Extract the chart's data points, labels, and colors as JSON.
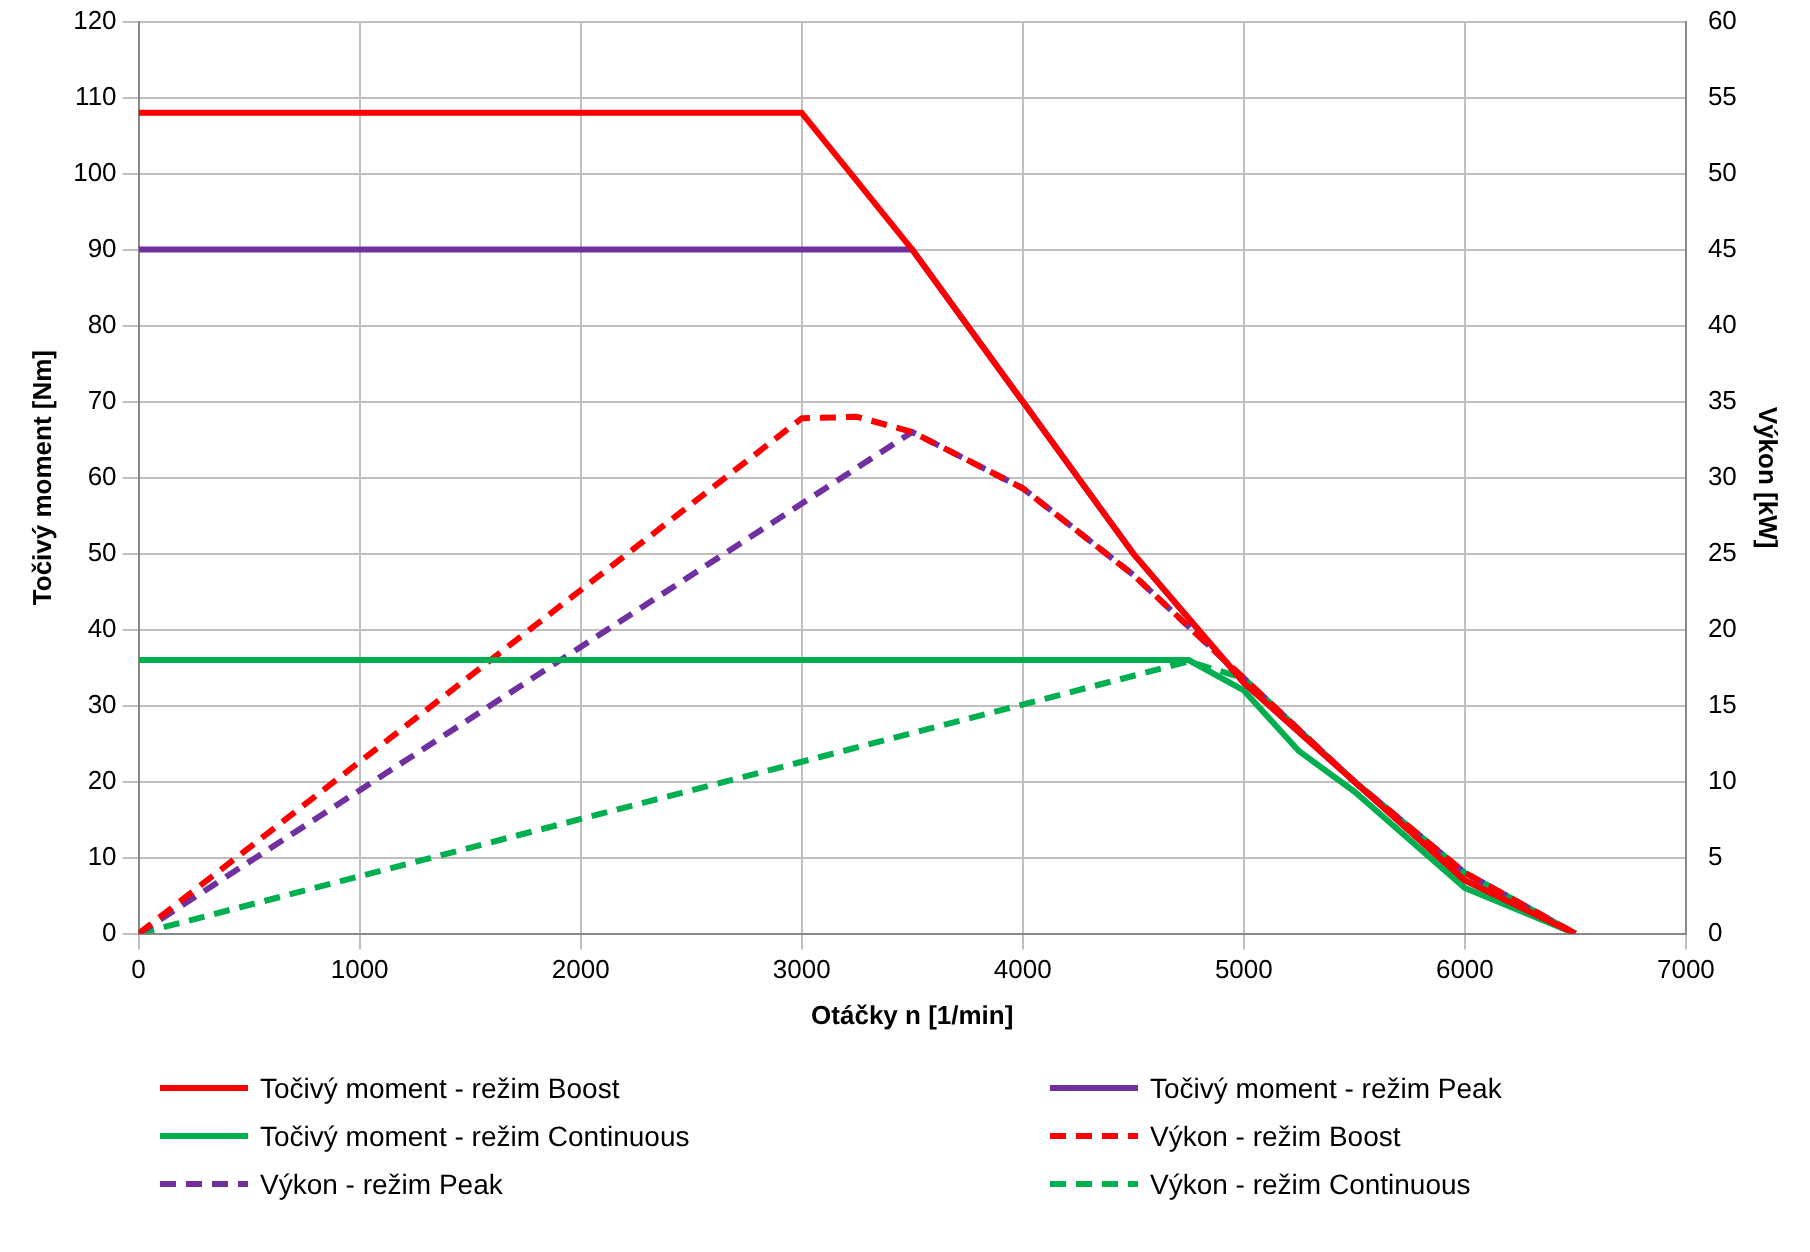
{
  "chart_data": {
    "type": "line",
    "xlabel": "Otáčky n [1/min]",
    "ylabel": "Točivý moment [Nm]",
    "y2label": "Výkon [kW]",
    "xlim": [
      0,
      7000
    ],
    "xticks": [
      0,
      1000,
      2000,
      3000,
      4000,
      5000,
      6000,
      7000
    ],
    "ylim": [
      0,
      120
    ],
    "yticks": [
      0,
      10,
      20,
      30,
      40,
      50,
      60,
      70,
      80,
      90,
      100,
      110,
      120
    ],
    "y2lim": [
      0,
      60
    ],
    "y2ticks": [
      0,
      5,
      10,
      15,
      20,
      25,
      30,
      35,
      40,
      45,
      50,
      55,
      60
    ],
    "grid": true,
    "legend": "bottom",
    "marker": "none",
    "series": [
      {
        "name": "Točivý moment - režim Boost",
        "color": "#ff0000",
        "line_style": "solid",
        "x": [
          0,
          3000,
          3250,
          3500,
          4000,
          4500,
          5000,
          5500,
          6000,
          6500
        ],
        "values": [
          108,
          108,
          99,
          90,
          70,
          50,
          33,
          20,
          7,
          0
        ]
      },
      {
        "name": "Točivý moment - režim Peak",
        "color": "#7030a0",
        "line_style": "solid",
        "x": [
          0,
          3500,
          4000,
          4500,
          5000,
          5500,
          6000,
          6500
        ],
        "values": [
          90,
          90,
          70,
          50,
          33,
          20,
          7,
          0
        ]
      },
      {
        "name": "Točivý moment - režim Continuous",
        "color": "#00b050",
        "line_style": "solid",
        "x": [
          0,
          4750,
          5000,
          5250,
          5500,
          6000,
          6500
        ],
        "values": [
          36,
          36,
          32,
          24,
          18.7,
          6,
          0
        ]
      },
      {
        "name": "Výkon - režim Boost",
        "color": "#ff0000",
        "line_style": "dashed",
        "axis": "y2",
        "x": [
          0,
          3000,
          3250,
          3500,
          4000,
          4500,
          5000,
          5500,
          6000,
          6500
        ],
        "values": [
          0,
          33.9,
          34,
          33,
          29.3,
          23.6,
          16.8,
          10,
          4,
          0
        ]
      },
      {
        "name": "Výkon - režim Peak",
        "color": "#7030a0",
        "line_style": "dashed",
        "axis": "y2",
        "x": [
          0,
          3500,
          4000,
          4500,
          5000,
          5500,
          6000,
          6500
        ],
        "values": [
          0,
          33,
          29.3,
          23.6,
          16.8,
          10,
          4,
          0
        ]
      },
      {
        "name": "Výkon - režim Continuous",
        "color": "#00b050",
        "line_style": "dashed",
        "axis": "y2",
        "x": [
          0,
          4750,
          5000,
          5500,
          6000,
          6500
        ],
        "values": [
          0,
          17.9,
          16.8,
          10,
          4,
          0
        ]
      }
    ]
  }
}
